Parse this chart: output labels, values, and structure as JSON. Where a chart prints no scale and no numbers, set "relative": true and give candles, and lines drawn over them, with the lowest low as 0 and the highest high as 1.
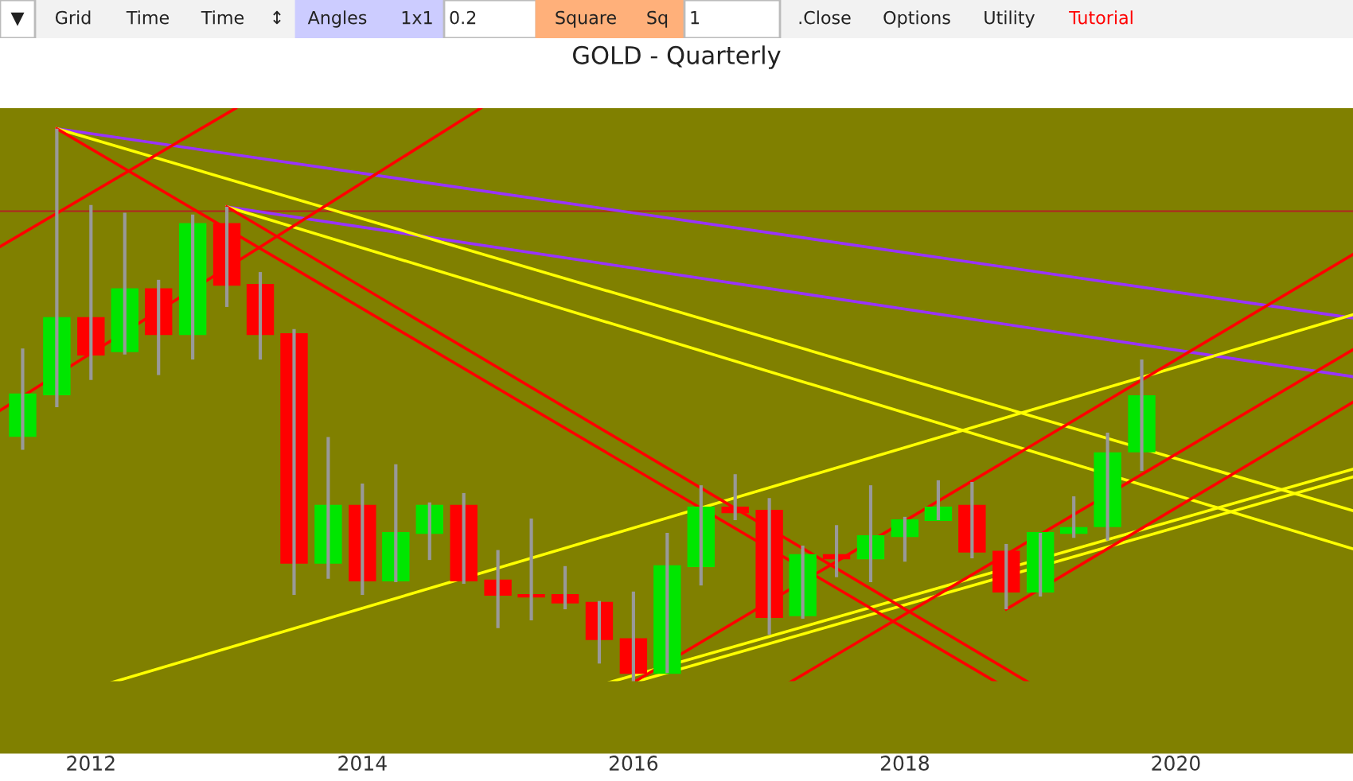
{
  "chart_data": {
    "type": "candlestick",
    "title": "GOLD - Quarterly",
    "relative": true,
    "tick_labels": "x",
    "annotations": [
      "▼",
      "Grid",
      "Time",
      "Time",
      "↕",
      "Angles",
      "1x1",
      "0.2",
      "Square",
      "Sq",
      "1",
      ".Close",
      "Options",
      "Utility",
      "Tutorial"
    ],
    "xlim": [
      "2011-05-01",
      "2021-04-22"
    ],
    "xticks": [
      {
        "value": "2012-01-01",
        "label": "2012"
      },
      {
        "value": "2014-01-01",
        "label": "2014"
      },
      {
        "value": "2016-01-01",
        "label": "2016"
      },
      {
        "value": "2018-01-01",
        "label": "2018"
      },
      {
        "value": "2020-01-01",
        "label": "2020"
      }
    ],
    "x": [
      "2011-07",
      "2011-10",
      "2012-01",
      "2012-04",
      "2012-07",
      "2012-10",
      "2013-01",
      "2013-04",
      "2013-07",
      "2013-10",
      "2014-01",
      "2014-04",
      "2014-07",
      "2014-10",
      "2015-01",
      "2015-04",
      "2015-07",
      "2015-10",
      "2016-01",
      "2016-04",
      "2016-07",
      "2016-10",
      "2017-01",
      "2017-04",
      "2017-07",
      "2017-10",
      "2018-01",
      "2018-04",
      "2018-07",
      "2018-10",
      "2019-01",
      "2019-04",
      "2019-07",
      "2019-10"
    ],
    "ohlc": [
      [
        0.445,
        0.603,
        0.42,
        0.52
      ],
      [
        0.52,
        1.0,
        0.497,
        0.658
      ],
      [
        0.658,
        0.862,
        0.546,
        0.592
      ],
      [
        0.598,
        0.848,
        0.592,
        0.71
      ],
      [
        0.71,
        0.727,
        0.555,
        0.629
      ],
      [
        0.629,
        0.845,
        0.583,
        0.828
      ],
      [
        0.828,
        0.859,
        0.678,
        0.718
      ],
      [
        0.718,
        0.741,
        0.583,
        0.629
      ],
      [
        0.629,
        0.638,
        0.158,
        0.216
      ],
      [
        0.216,
        0.443,
        0.187,
        0.319
      ],
      [
        0.319,
        0.359,
        0.158,
        0.184
      ],
      [
        0.184,
        0.394,
        0.181,
        0.27
      ],
      [
        0.27,
        0.325,
        0.221,
        0.319
      ],
      [
        0.319,
        0.342,
        0.178,
        0.184
      ],
      [
        0.184,
        0.239,
        0.098,
        0.158
      ],
      [
        0.158,
        0.296,
        0.112,
        0.155
      ],
      [
        0.158,
        0.21,
        0.132,
        0.144
      ],
      [
        0.144,
        0.147,
        0.034,
        0.078
      ],
      [
        0.078,
        0.164,
        0.0,
        0.017
      ],
      [
        0.017,
        0.27,
        0.017,
        0.21
      ],
      [
        0.21,
        0.356,
        0.175,
        0.316
      ],
      [
        0.316,
        0.376,
        0.293,
        0.307
      ],
      [
        0.31,
        0.333,
        0.086,
        0.118
      ],
      [
        0.121,
        0.247,
        0.115,
        0.23
      ],
      [
        0.23,
        0.284,
        0.19,
        0.224
      ],
      [
        0.224,
        0.356,
        0.181,
        0.264
      ],
      [
        0.264,
        0.299,
        0.218,
        0.293
      ],
      [
        0.293,
        0.365,
        0.293,
        0.316
      ],
      [
        0.319,
        0.362,
        0.224,
        0.236
      ],
      [
        0.236,
        0.25,
        0.132,
        0.164
      ],
      [
        0.164,
        0.27,
        0.155,
        0.27
      ],
      [
        0.27,
        0.336,
        0.261,
        0.279
      ],
      [
        0.282,
        0.451,
        0.256,
        0.414
      ],
      [
        0.417,
        0.583,
        0.382,
        0.517
      ]
    ],
    "colors": [
      "#00e600",
      "#00e600",
      "#ff0000",
      "#00e600",
      "#ff0000",
      "#00e600",
      "#ff0000",
      "#ff0000",
      "#ff0000",
      "#00e600",
      "#ff0000",
      "#00e600",
      "#00e600",
      "#ff0000",
      "#ff0000",
      "#ff0000",
      "#ff0000",
      "#ff0000",
      "#ff0000",
      "#00e600",
      "#00e600",
      "#ff0000",
      "#ff0000",
      "#00e600",
      "#ff0000",
      "#00e600",
      "#00e600",
      "#00e600",
      "#ff0000",
      "#ff0000",
      "#00e600",
      "#00e600",
      "#00e600",
      "#00e600"
    ],
    "ref_lines": [
      {
        "axis": "y",
        "value": 0.851,
        "color": "#b22222"
      }
    ],
    "series": [
      {
        "type": "line",
        "color": "#9933ff",
        "x": [
          "2011-10-01",
          "2021-04-22"
        ],
        "values": [
          1.0,
          0.658
        ]
      },
      {
        "type": "line",
        "color": "#9933ff",
        "x": [
          "2013-01-01",
          "2021-04-22"
        ],
        "values": [
          0.859,
          0.552
        ]
      },
      {
        "type": "line",
        "color": "#ffff00",
        "x": [
          "2011-10-01",
          "2021-04-22"
        ],
        "values": [
          1.0,
          0.31
        ]
      },
      {
        "type": "line",
        "color": "#ffff00",
        "x": [
          "2013-01-01",
          "2021-04-22"
        ],
        "values": [
          0.859,
          0.241
        ]
      },
      {
        "type": "line",
        "color": "#ffff00",
        "x": [
          "2012-02-27",
          "2021-04-22"
        ],
        "values": [
          0.0,
          0.664
        ]
      },
      {
        "type": "line",
        "color": "#ffff00",
        "x": [
          "2015-10-28",
          "2021-04-22"
        ],
        "values": [
          0.0,
          0.385
        ]
      },
      {
        "type": "line",
        "color": "#ffff00",
        "x": [
          "2016-01-01",
          "2021-04-22"
        ],
        "values": [
          0.0,
          0.371
        ]
      },
      {
        "type": "line",
        "color": "#ff0000",
        "x": [
          "2011-05-01",
          "2013-01-25"
        ],
        "values": [
          0.787,
          1.037
        ]
      },
      {
        "type": "line",
        "color": "#ff0000",
        "x": [
          "2011-05-01",
          "2014-11-16"
        ],
        "values": [
          0.491,
          1.037
        ]
      },
      {
        "type": "line",
        "color": "#ff0000",
        "x": [
          "2011-10-01",
          "2018-09-05"
        ],
        "values": [
          1.0,
          0.0
        ]
      },
      {
        "type": "line",
        "color": "#ff0000",
        "x": [
          "2013-01-01",
          "2018-11-30"
        ],
        "values": [
          0.859,
          0.0
        ]
      },
      {
        "type": "line",
        "color": "#ff0000",
        "x": [
          "2016-01-01",
          "2021-04-22"
        ],
        "values": [
          0.0,
          0.773
        ]
      },
      {
        "type": "line",
        "color": "#ff0000",
        "x": [
          "2018-10-01",
          "2021-04-22"
        ],
        "values": [
          0.132,
          0.506
        ]
      },
      {
        "type": "line",
        "color": "#ff0000",
        "x": [
          "2017-02-25",
          "2021-04-22"
        ],
        "values": [
          0.0,
          0.601
        ]
      }
    ]
  }
}
